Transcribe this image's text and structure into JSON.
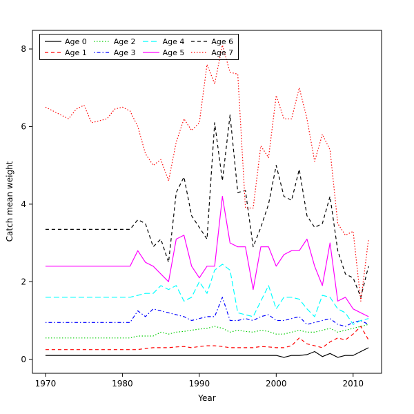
{
  "chart_data": {
    "type": "line",
    "title": "",
    "xlabel": "Year",
    "ylabel": "Catch mean weight",
    "grid": false,
    "legend_position": "top-left",
    "x_ticks": [
      1970,
      1980,
      1990,
      2000,
      2010
    ],
    "y_ticks": [
      0,
      2,
      4,
      6,
      8
    ],
    "xlim": [
      1968.3,
      2013.7
    ],
    "ylim": [
      -0.36,
      8.48
    ],
    "years": [
      1970,
      1971,
      1972,
      1973,
      1974,
      1975,
      1976,
      1977,
      1978,
      1979,
      1980,
      1981,
      1982,
      1983,
      1984,
      1985,
      1986,
      1987,
      1988,
      1989,
      1990,
      1991,
      1992,
      1993,
      1994,
      1995,
      1996,
      1997,
      1998,
      1999,
      2000,
      2001,
      2002,
      2003,
      2004,
      2005,
      2006,
      2007,
      2008,
      2009,
      2010,
      2011,
      2012
    ],
    "series": [
      {
        "name": "Age 0",
        "color": "#000000",
        "linetype": "solid",
        "values": [
          0.1,
          0.1,
          0.1,
          0.1,
          0.1,
          0.1,
          0.1,
          0.1,
          0.1,
          0.1,
          0.1,
          0.1,
          0.1,
          0.1,
          0.1,
          0.1,
          0.1,
          0.1,
          0.1,
          0.1,
          0.1,
          0.1,
          0.1,
          0.1,
          0.1,
          0.1,
          0.1,
          0.1,
          0.1,
          0.1,
          0.1,
          0.05,
          0.1,
          0.1,
          0.12,
          0.2,
          0.07,
          0.15,
          0.05,
          0.1,
          0.1,
          0.2,
          0.3
        ]
      },
      {
        "name": "Age 1",
        "color": "#ff0000",
        "linetype": "dashed",
        "values": [
          0.25,
          0.25,
          0.25,
          0.25,
          0.25,
          0.25,
          0.25,
          0.25,
          0.25,
          0.25,
          0.25,
          0.25,
          0.25,
          0.28,
          0.3,
          0.3,
          0.3,
          0.32,
          0.33,
          0.3,
          0.33,
          0.35,
          0.35,
          0.33,
          0.3,
          0.3,
          0.3,
          0.3,
          0.33,
          0.32,
          0.3,
          0.3,
          0.35,
          0.55,
          0.4,
          0.35,
          0.3,
          0.45,
          0.55,
          0.5,
          0.65,
          0.85,
          0.5
        ]
      },
      {
        "name": "Age 2",
        "color": "#00cd00",
        "linetype": "dotted",
        "values": [
          0.55,
          0.55,
          0.55,
          0.55,
          0.55,
          0.55,
          0.55,
          0.55,
          0.55,
          0.55,
          0.55,
          0.55,
          0.6,
          0.6,
          0.6,
          0.7,
          0.65,
          0.7,
          0.72,
          0.75,
          0.78,
          0.8,
          0.85,
          0.8,
          0.7,
          0.75,
          0.72,
          0.7,
          0.75,
          0.72,
          0.65,
          0.65,
          0.7,
          0.75,
          0.7,
          0.7,
          0.75,
          0.8,
          0.7,
          0.75,
          0.8,
          0.85,
          0.9
        ]
      },
      {
        "name": "Age 3",
        "color": "#0000ff",
        "linetype": "dotdash",
        "values": [
          0.95,
          0.95,
          0.95,
          0.95,
          0.95,
          0.95,
          0.95,
          0.95,
          0.95,
          0.95,
          0.95,
          0.95,
          1.25,
          1.1,
          1.3,
          1.25,
          1.2,
          1.15,
          1.1,
          1.0,
          1.05,
          1.1,
          1.1,
          1.6,
          1.0,
          1.0,
          1.05,
          1.0,
          1.1,
          1.15,
          1.0,
          1.0,
          1.05,
          1.1,
          0.9,
          0.95,
          1.0,
          1.05,
          0.9,
          0.85,
          0.95,
          1.0,
          0.9
        ]
      },
      {
        "name": "Age 4",
        "color": "#00ffff",
        "linetype": "longdash",
        "values": [
          1.6,
          1.6,
          1.6,
          1.6,
          1.6,
          1.6,
          1.6,
          1.6,
          1.6,
          1.6,
          1.6,
          1.6,
          1.65,
          1.7,
          1.7,
          1.9,
          1.8,
          1.9,
          1.5,
          1.6,
          2.0,
          1.7,
          2.3,
          2.45,
          2.3,
          1.2,
          1.15,
          1.1,
          1.5,
          1.9,
          1.3,
          1.6,
          1.6,
          1.55,
          1.3,
          1.1,
          1.65,
          1.6,
          1.3,
          1.2,
          0.9,
          1.0,
          1.05
        ]
      },
      {
        "name": "Age 5",
        "color": "#ff00ff",
        "linetype": "solid",
        "values": [
          2.4,
          2.4,
          2.4,
          2.4,
          2.4,
          2.4,
          2.4,
          2.4,
          2.4,
          2.4,
          2.4,
          2.4,
          2.8,
          2.5,
          2.4,
          2.2,
          2.0,
          3.1,
          3.2,
          2.4,
          2.1,
          2.4,
          2.4,
          4.2,
          3.0,
          2.9,
          2.9,
          1.8,
          2.9,
          2.9,
          2.4,
          2.7,
          2.8,
          2.8,
          3.1,
          2.4,
          1.9,
          3.0,
          1.5,
          1.6,
          1.3,
          1.2,
          1.1
        ]
      },
      {
        "name": "Age 6",
        "color": "#000000",
        "linetype": "dashed",
        "values": [
          3.35,
          3.35,
          3.35,
          3.35,
          3.35,
          3.35,
          3.35,
          3.35,
          3.35,
          3.35,
          3.35,
          3.35,
          3.6,
          3.5,
          2.9,
          3.1,
          2.5,
          4.3,
          4.7,
          3.7,
          3.4,
          3.1,
          6.1,
          4.6,
          6.3,
          4.3,
          4.35,
          2.9,
          3.4,
          4.0,
          5.0,
          4.2,
          4.1,
          4.9,
          3.7,
          3.4,
          3.5,
          4.2,
          2.8,
          2.2,
          2.1,
          1.6,
          2.4
        ]
      },
      {
        "name": "Age 7",
        "color": "#ff0000",
        "linetype": "dotted",
        "values": [
          6.5,
          6.4,
          6.3,
          6.2,
          6.45,
          6.55,
          6.1,
          6.15,
          6.2,
          6.45,
          6.5,
          6.4,
          6.0,
          5.3,
          5.0,
          5.15,
          4.6,
          5.6,
          6.2,
          5.9,
          6.1,
          7.6,
          7.1,
          8.1,
          7.4,
          7.35,
          3.9,
          3.9,
          5.5,
          5.2,
          6.8,
          6.2,
          6.2,
          7.0,
          6.2,
          5.1,
          5.8,
          5.4,
          3.5,
          3.2,
          3.3,
          1.5,
          3.1
        ]
      }
    ]
  }
}
